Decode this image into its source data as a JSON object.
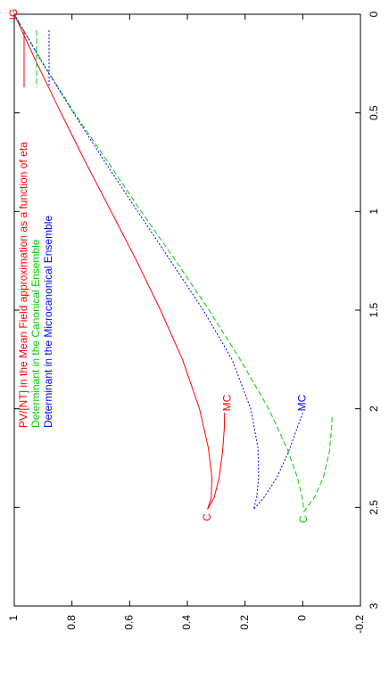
{
  "chart_data": {
    "type": "line",
    "orientation": "rotated-90",
    "title": "",
    "xlabel": "",
    "ylabel": "",
    "xlim": [
      0,
      3
    ],
    "ylim": [
      -0.2,
      1
    ],
    "x_ticks": [
      "0",
      "0.5",
      "1",
      "1.5",
      "2",
      "2.5",
      "3"
    ],
    "y_ticks": [
      "-0.2",
      "0",
      "0.2",
      "0.4",
      "0.6",
      "0.8",
      "1"
    ],
    "grid": false,
    "legend_position": "top-left",
    "series": [
      {
        "name": "PV/[NT] in the Mean Field approximation as a function of eta",
        "color": "#ff0000",
        "dash": "solid",
        "points": [
          [
            0,
            1
          ],
          [
            0.25,
            0.921
          ],
          [
            0.5,
            0.838
          ],
          [
            0.75,
            0.753
          ],
          [
            1.0,
            0.664
          ],
          [
            1.25,
            0.576
          ],
          [
            1.5,
            0.493
          ],
          [
            1.75,
            0.417
          ],
          [
            2.0,
            0.358
          ],
          [
            2.2,
            0.327
          ],
          [
            2.35,
            0.315
          ],
          [
            2.45,
            0.317
          ],
          [
            2.51,
            0.33
          ],
          [
            2.45,
            0.307
          ],
          [
            2.35,
            0.29
          ],
          [
            2.22,
            0.278
          ],
          [
            2.1,
            0.272
          ],
          [
            2.02,
            0.271
          ]
        ]
      },
      {
        "name": "Determinant in the Canonical Ensemble",
        "color": "#00cc00",
        "dash": "dashed",
        "points": [
          [
            0,
            1
          ],
          [
            0.25,
            0.9
          ],
          [
            0.5,
            0.792
          ],
          [
            0.75,
            0.675
          ],
          [
            1.0,
            0.56
          ],
          [
            1.25,
            0.44
          ],
          [
            1.5,
            0.325
          ],
          [
            1.75,
            0.217
          ],
          [
            2.0,
            0.118
          ],
          [
            2.2,
            0.055
          ],
          [
            2.35,
            0.018
          ],
          [
            2.45,
            0.002
          ],
          [
            2.52,
            -0.005
          ],
          [
            2.45,
            -0.04
          ],
          [
            2.35,
            -0.071
          ],
          [
            2.22,
            -0.092
          ],
          [
            2.1,
            -0.1
          ],
          [
            2.04,
            -0.102
          ]
        ]
      },
      {
        "name": "Determinant in the Microcanonical Ensemble",
        "color": "#0000ff",
        "dash": "dotted",
        "points": [
          [
            0,
            1
          ],
          [
            0.25,
            0.901
          ],
          [
            0.5,
            0.795
          ],
          [
            0.75,
            0.685
          ],
          [
            1.0,
            0.572
          ],
          [
            1.25,
            0.458
          ],
          [
            1.5,
            0.345
          ],
          [
            1.75,
            0.245
          ],
          [
            2.0,
            0.18
          ],
          [
            2.2,
            0.155
          ],
          [
            2.35,
            0.153
          ],
          [
            2.45,
            0.16
          ],
          [
            2.51,
            0.17
          ],
          [
            2.45,
            0.135
          ],
          [
            2.35,
            0.09
          ],
          [
            2.22,
            0.05
          ],
          [
            2.1,
            0.02
          ],
          [
            2.02,
            0.0
          ]
        ]
      }
    ],
    "annotations": [
      {
        "text": "IG",
        "x": 0.0,
        "y": 1.0,
        "color": "#ff0000"
      },
      {
        "text": "C",
        "x": 2.55,
        "y": 0.33,
        "color": "#ff0000"
      },
      {
        "text": "MC",
        "x": 1.97,
        "y": 0.26,
        "color": "#ff0000"
      },
      {
        "text": "C",
        "x": 2.56,
        "y": -0.005,
        "color": "#00cc00"
      },
      {
        "text": "MC",
        "x": 1.97,
        "y": 0.0,
        "color": "#0000ff"
      }
    ]
  }
}
